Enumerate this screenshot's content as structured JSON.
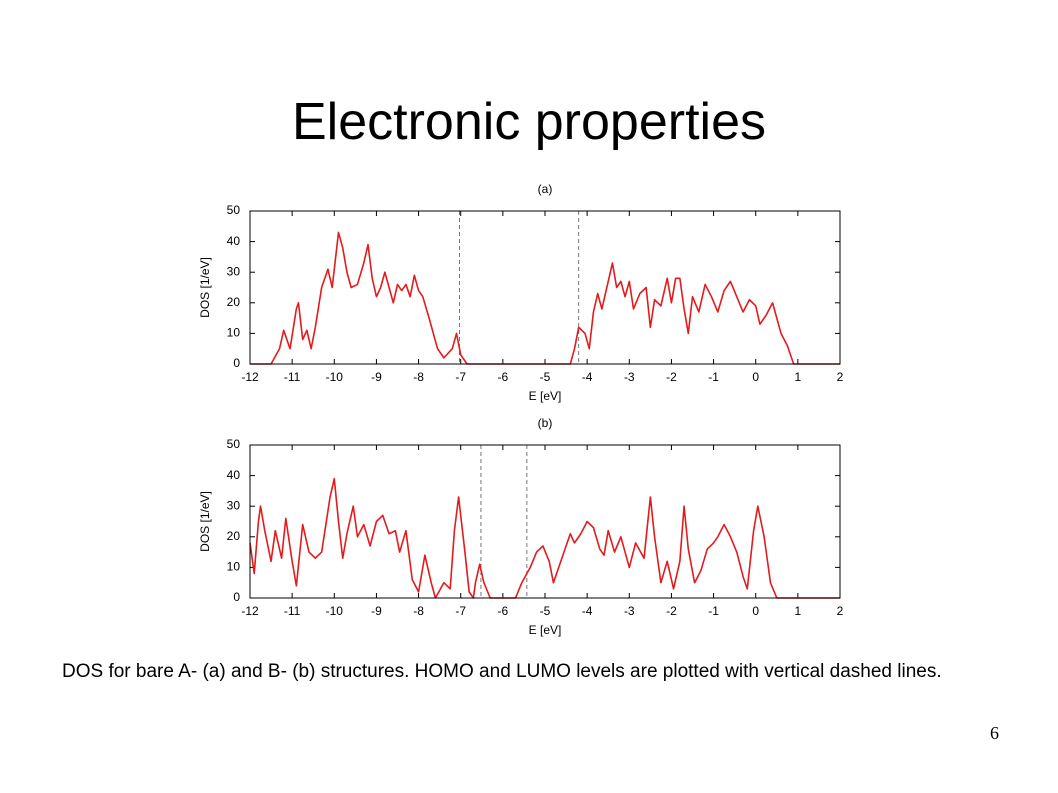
{
  "title": "Electronic properties",
  "caption": "DOS for bare A- (a) and B- (b) structures. HOMO and LUMO levels are plotted with vertical dashed lines.",
  "page_number": "6",
  "chart_data": [
    {
      "type": "line",
      "title": "(a)",
      "xlabel": "E [eV]",
      "ylabel": "DOS [1/eV]",
      "color": "#e41a1c",
      "grid": false,
      "xlim": [
        -12,
        2
      ],
      "ylim": [
        0,
        50
      ],
      "xticks": [
        -12,
        -11,
        -10,
        -9,
        -8,
        -7,
        -6,
        -5,
        -4,
        -3,
        -2,
        -1,
        0,
        1,
        2
      ],
      "yticks": [
        0,
        10,
        20,
        30,
        40,
        50
      ],
      "vlines": [
        -7.03,
        -4.2
      ],
      "vline_color": "#555555",
      "x": [
        -12,
        -11.5,
        -11.3,
        -11.2,
        -11.05,
        -10.9,
        -10.85,
        -10.75,
        -10.65,
        -10.55,
        -10.45,
        -10.3,
        -10.15,
        -10.05,
        -9.9,
        -9.8,
        -9.7,
        -9.6,
        -9.45,
        -9.3,
        -9.2,
        -9.1,
        -9.0,
        -8.9,
        -8.8,
        -8.7,
        -8.6,
        -8.5,
        -8.4,
        -8.3,
        -8.2,
        -8.1,
        -8.0,
        -7.9,
        -7.75,
        -7.55,
        -7.4,
        -7.2,
        -7.1,
        -7.0,
        -6.85,
        -5.0,
        -4.4,
        -4.3,
        -4.2,
        -4.05,
        -3.95,
        -3.85,
        -3.75,
        -3.65,
        -3.55,
        -3.4,
        -3.3,
        -3.2,
        -3.1,
        -3.0,
        -2.9,
        -2.75,
        -2.6,
        -2.5,
        -2.4,
        -2.25,
        -2.1,
        -2.0,
        -1.9,
        -1.8,
        -1.7,
        -1.6,
        -1.5,
        -1.35,
        -1.2,
        -1.05,
        -0.9,
        -0.75,
        -0.6,
        -0.45,
        -0.3,
        -0.15,
        0.0,
        0.1,
        0.25,
        0.4,
        0.5,
        0.6,
        0.75,
        0.9,
        2
      ],
      "values": [
        0,
        0,
        5,
        11,
        5,
        18,
        20,
        8,
        11,
        5,
        12,
        25,
        31,
        25,
        43,
        38,
        30,
        25,
        26,
        33,
        39,
        28,
        22,
        25,
        30,
        25,
        20,
        26,
        24,
        26,
        22,
        29,
        24,
        22,
        15,
        5,
        2,
        5,
        10,
        3,
        0,
        0,
        0,
        5,
        12,
        10,
        5,
        17,
        23,
        18,
        24,
        33,
        25,
        27,
        22,
        27,
        18,
        23,
        25,
        12,
        21,
        19,
        28,
        20,
        28,
        28,
        18,
        10,
        22,
        17,
        26,
        22,
        17,
        24,
        27,
        22,
        17,
        21,
        19,
        13,
        16,
        20,
        15,
        10,
        6,
        0,
        0
      ]
    },
    {
      "type": "line",
      "title": "(b)",
      "xlabel": "E [eV]",
      "ylabel": "DOS [1/eV]",
      "color": "#e41a1c",
      "grid": false,
      "xlim": [
        -12,
        2
      ],
      "ylim": [
        0,
        50
      ],
      "xticks": [
        -12,
        -11,
        -10,
        -9,
        -8,
        -7,
        -6,
        -5,
        -4,
        -3,
        -2,
        -1,
        0,
        1,
        2
      ],
      "yticks": [
        0,
        10,
        20,
        30,
        40,
        50
      ],
      "vlines": [
        -6.52,
        -5.43
      ],
      "vline_color": "#555555",
      "x": [
        -12,
        -11.9,
        -11.8,
        -11.75,
        -11.65,
        -11.5,
        -11.4,
        -11.25,
        -11.15,
        -11.0,
        -10.9,
        -10.75,
        -10.6,
        -10.45,
        -10.3,
        -10.1,
        -10.0,
        -9.9,
        -9.8,
        -9.7,
        -9.55,
        -9.45,
        -9.3,
        -9.15,
        -9.0,
        -8.85,
        -8.7,
        -8.55,
        -8.45,
        -8.3,
        -8.15,
        -8.0,
        -7.85,
        -7.7,
        -7.6,
        -7.4,
        -7.25,
        -7.15,
        -7.05,
        -6.9,
        -6.8,
        -6.7,
        -6.65,
        -6.55,
        -6.45,
        -6.3,
        -5.7,
        -5.55,
        -5.35,
        -5.2,
        -5.05,
        -4.9,
        -4.8,
        -4.7,
        -4.55,
        -4.4,
        -4.3,
        -4.15,
        -4.0,
        -3.85,
        -3.7,
        -3.6,
        -3.5,
        -3.35,
        -3.2,
        -3.0,
        -2.85,
        -2.65,
        -2.5,
        -2.4,
        -2.25,
        -2.1,
        -1.95,
        -1.8,
        -1.7,
        -1.6,
        -1.45,
        -1.3,
        -1.15,
        -1.0,
        -0.9,
        -0.75,
        -0.6,
        -0.45,
        -0.3,
        -0.2,
        -0.05,
        0.05,
        0.2,
        0.35,
        0.5,
        2
      ],
      "values": [
        18,
        8,
        25,
        30,
        22,
        12,
        22,
        13,
        26,
        12,
        4,
        24,
        15,
        13,
        15,
        33,
        39,
        25,
        13,
        21,
        30,
        20,
        24,
        17,
        25,
        27,
        21,
        22,
        15,
        22,
        6,
        2,
        14,
        5,
        0,
        5,
        3,
        22,
        33,
        15,
        2,
        0,
        5,
        11,
        5,
        0,
        0,
        5,
        10,
        15,
        17,
        12,
        5,
        9,
        15,
        21,
        18,
        21,
        25,
        23,
        16,
        14,
        22,
        15,
        20,
        10,
        18,
        13,
        33,
        20,
        5,
        12,
        3,
        12,
        30,
        16,
        5,
        9,
        16,
        18,
        20,
        24,
        20,
        15,
        7,
        3,
        22,
        30,
        20,
        5,
        0,
        0
      ]
    }
  ]
}
